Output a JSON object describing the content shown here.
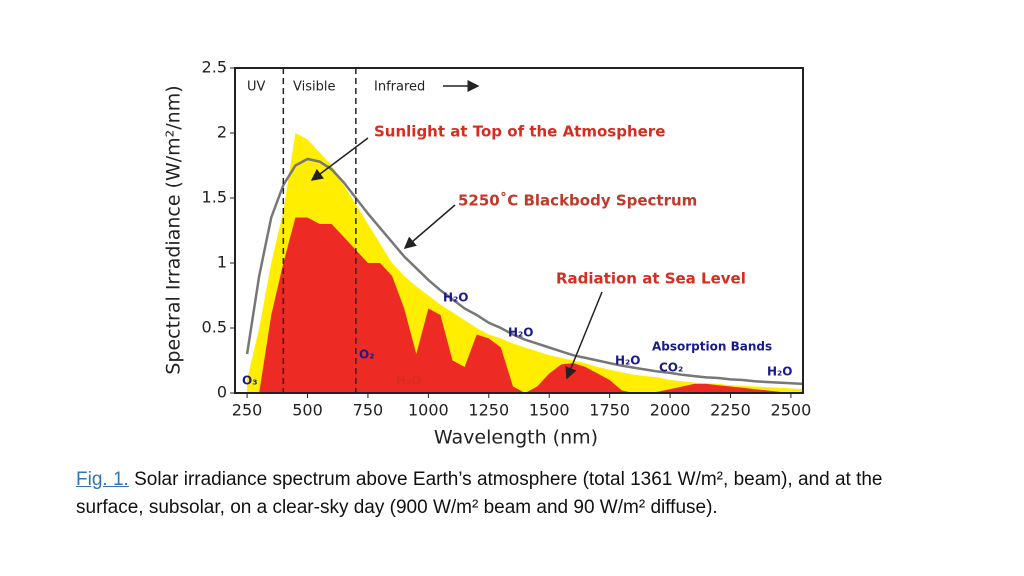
{
  "chart_data": {
    "type": "area",
    "x_label": "Wavelength (nm)",
    "y_label": "Spectral Irradiance (W/m²/nm)",
    "x": [
      250,
      300,
      350,
      400,
      450,
      500,
      550,
      600,
      650,
      700,
      750,
      800,
      850,
      900,
      950,
      1000,
      1050,
      1100,
      1150,
      1200,
      1250,
      1300,
      1350,
      1400,
      1450,
      1500,
      1550,
      1600,
      1650,
      1700,
      1750,
      1800,
      1850,
      1900,
      1950,
      2000,
      2050,
      2100,
      2150,
      2200,
      2250,
      2300,
      2350,
      2400,
      2450,
      2500,
      2550
    ],
    "series": [
      {
        "name": "Sunlight at Top of the Atmosphere",
        "kind": "area",
        "color": "#ffee00",
        "values": [
          0.1,
          0.5,
          1.0,
          1.4,
          2.0,
          1.95,
          1.85,
          1.75,
          1.6,
          1.45,
          1.3,
          1.15,
          1.0,
          0.9,
          0.82,
          0.75,
          0.68,
          0.62,
          0.56,
          0.5,
          0.45,
          0.42,
          0.38,
          0.35,
          0.32,
          0.29,
          0.27,
          0.25,
          0.23,
          0.2,
          0.18,
          0.16,
          0.14,
          0.13,
          0.12,
          0.1,
          0.09,
          0.08,
          0.075,
          0.07,
          0.06,
          0.055,
          0.05,
          0.045,
          0.04,
          0.035,
          0.03
        ]
      },
      {
        "name": "Radiation at Sea Level",
        "kind": "area",
        "color": "#ee2a24",
        "values": [
          0,
          0,
          0.6,
          1.0,
          1.35,
          1.35,
          1.3,
          1.3,
          1.2,
          1.1,
          1.0,
          1.0,
          0.9,
          0.65,
          0.3,
          0.65,
          0.6,
          0.25,
          0.2,
          0.45,
          0.42,
          0.35,
          0.05,
          0,
          0.05,
          0.15,
          0.22,
          0.23,
          0.2,
          0.15,
          0.1,
          0.02,
          0,
          0,
          0.01,
          0.03,
          0.05,
          0.07,
          0.07,
          0.06,
          0.05,
          0.04,
          0.03,
          0.02,
          0.01,
          0,
          0
        ]
      },
      {
        "name": "5250˚C Blackbody Spectrum",
        "kind": "line",
        "color": "#777777",
        "values": [
          0.3,
          0.9,
          1.35,
          1.6,
          1.75,
          1.8,
          1.78,
          1.72,
          1.62,
          1.5,
          1.38,
          1.27,
          1.16,
          1.05,
          0.96,
          0.87,
          0.79,
          0.72,
          0.65,
          0.6,
          0.54,
          0.5,
          0.45,
          0.41,
          0.38,
          0.35,
          0.32,
          0.29,
          0.27,
          0.25,
          0.23,
          0.21,
          0.195,
          0.18,
          0.165,
          0.155,
          0.14,
          0.13,
          0.12,
          0.115,
          0.105,
          0.1,
          0.09,
          0.085,
          0.08,
          0.075,
          0.07
        ]
      }
    ],
    "vlines": [
      400,
      700
    ],
    "annotations": [
      "UV",
      "Visible",
      "Infrared",
      "O₃",
      "O₂",
      "H₂O",
      "H₂O",
      "H₂O",
      "H₂O",
      "CO₂",
      "H₂O",
      "Absorption Bands"
    ],
    "xlim": [
      200,
      2550
    ],
    "ylim": [
      0,
      2.5
    ],
    "xticks": [
      250,
      500,
      750,
      1000,
      1250,
      1500,
      1750,
      2000,
      2250,
      2500
    ],
    "yticks": [
      0,
      0.5,
      1,
      1.5,
      2,
      2.5
    ]
  },
  "caption": {
    "label": "Fig. 1.",
    "text": "Solar irradiance spectrum above Earth’s atmosphere (total 1361 W/m², beam), and at the surface, subsolar, on a clear-sky day (900 W/m² beam and 90 W/m² diffuse)."
  }
}
